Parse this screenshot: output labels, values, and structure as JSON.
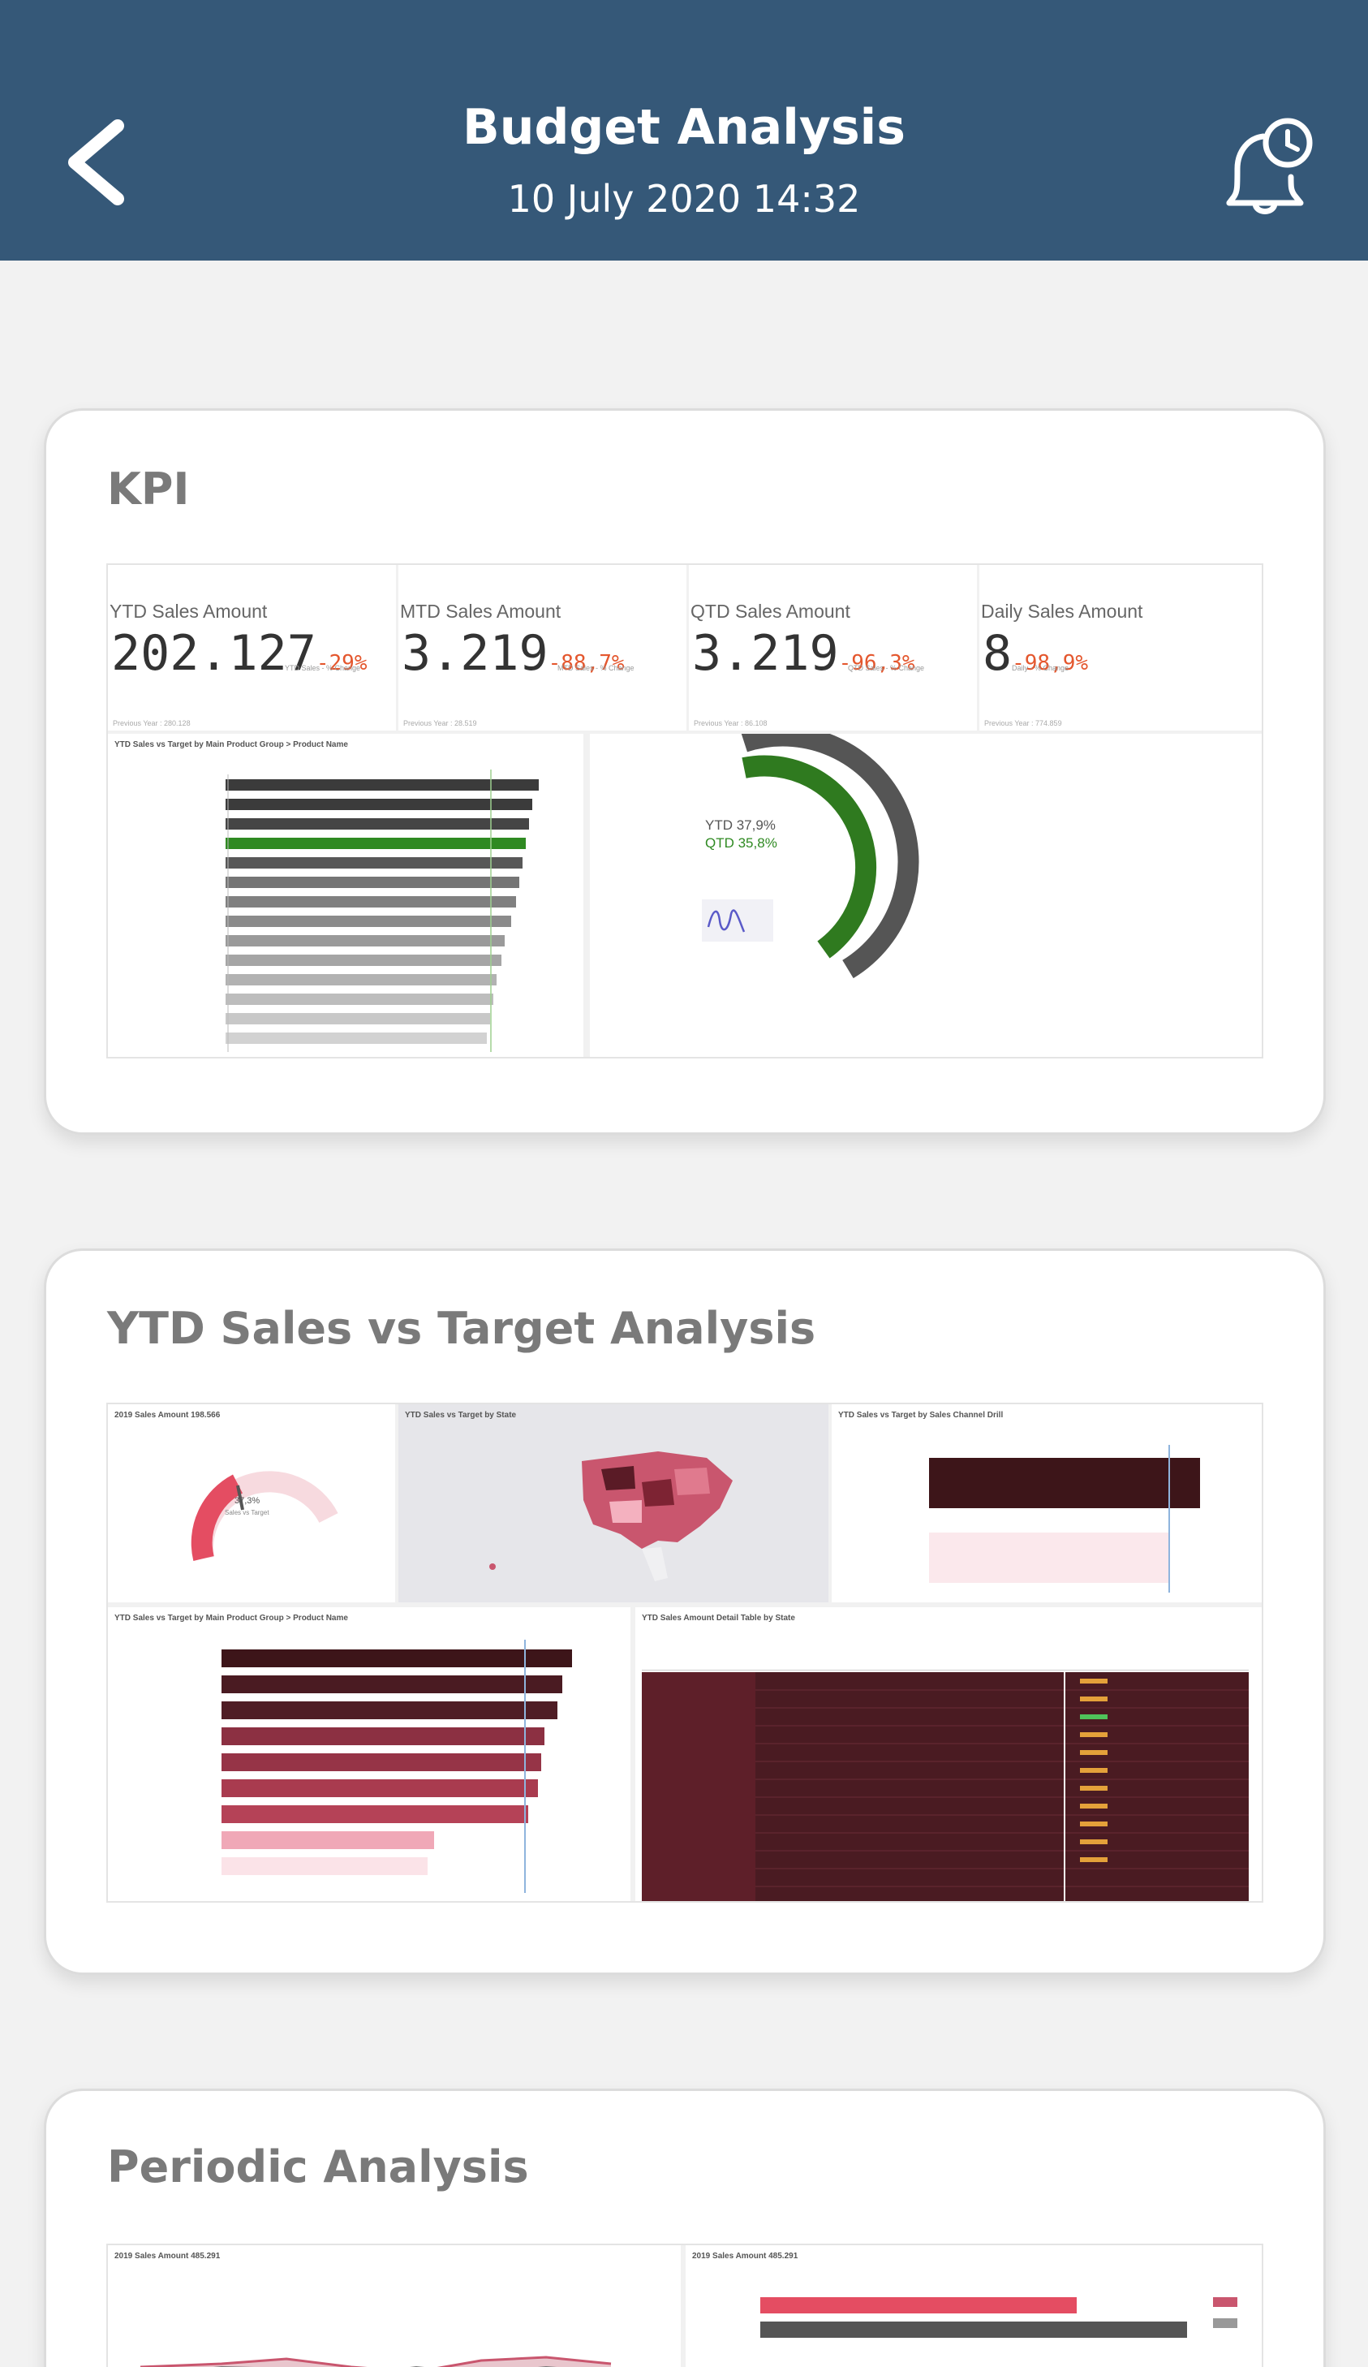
{
  "header": {
    "title": "Budget Analysis",
    "subtitle": "10 July 2020 14:32",
    "back_icon": "chevron-left-icon",
    "alert_icon": "bell-clock-icon"
  },
  "colors": {
    "header_bg": "#355878",
    "kpi_change": "#e4572e",
    "bar_highlight": "#2f8a22",
    "dark_red": "#4a1b22",
    "mid_red": "#a93b4f",
    "pink": "#f0a8b7"
  },
  "cards": [
    {
      "title": "KPI",
      "kpis": [
        {
          "label": "YTD Sales Amount",
          "value": "202.127",
          "change": "-29%"
        },
        {
          "label": "MTD Sales Amount",
          "value": "3.219",
          "change": "-88,7%"
        },
        {
          "label": "QTD Sales Amount",
          "value": "3.219",
          "change": "-96,3%"
        },
        {
          "label": "Daily Sales Amount",
          "value": "8",
          "change": "-98,9%"
        }
      ],
      "gauge_labels": [
        "YTD 37,9%",
        "QTD 35,8%"
      ]
    },
    {
      "title": "YTD Sales vs Target Analysis"
    },
    {
      "title": "Periodic Analysis"
    }
  ]
}
